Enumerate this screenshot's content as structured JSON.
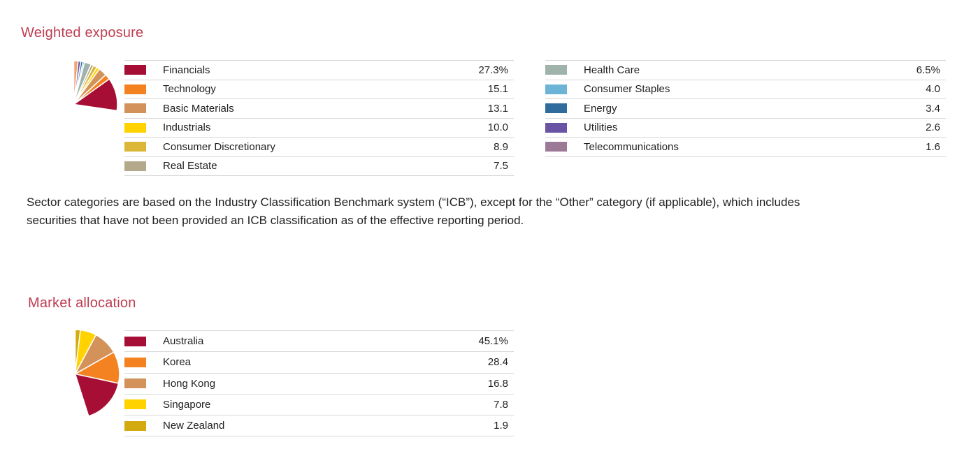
{
  "colors": {
    "heading": "#BE3D51",
    "text": "#1F1F1F",
    "divider": "#D8D8D8",
    "background": "#FFFFFF"
  },
  "sections": {
    "weighted_exposure": {
      "heading": "Weighted exposure",
      "legend_left": [
        {
          "label": "Financials",
          "value": "27.3%",
          "color": "#A60E36"
        },
        {
          "label": "Technology",
          "value": "15.1",
          "color": "#F58220"
        },
        {
          "label": "Basic Materials",
          "value": "13.1",
          "color": "#D2925A"
        },
        {
          "label": "Industrials",
          "value": "10.0",
          "color": "#FFD200"
        },
        {
          "label": "Consumer Discretionary",
          "value": "8.9",
          "color": "#DBB637"
        },
        {
          "label": "Real Estate",
          "value": "7.5",
          "color": "#B5A98C"
        }
      ],
      "legend_right": [
        {
          "label": "Health Care",
          "value": "6.5%",
          "color": "#9FB3AB"
        },
        {
          "label": "Consumer Staples",
          "value": "4.0",
          "color": "#6CB4D6"
        },
        {
          "label": "Energy",
          "value": "3.4",
          "color": "#2E6C9E"
        },
        {
          "label": "Utilities",
          "value": "2.6",
          "color": "#6953A4"
        },
        {
          "label": "Telecommunications",
          "value": "1.6",
          "color": "#9D7998"
        }
      ]
    },
    "note": {
      "lines": [
        "Sector categories are based on the Industry Classification Benchmark system (“ICB”), except for the “Other” category (if applicable), which includes",
        "securities that have not been provided an ICB classification as of the effective reporting period."
      ]
    },
    "market_allocation": {
      "heading": "Market allocation",
      "legend": [
        {
          "label": "Australia",
          "value": "45.1%",
          "color": "#A60E36"
        },
        {
          "label": "Korea",
          "value": "28.4",
          "color": "#F58220"
        },
        {
          "label": "Hong Kong",
          "value": "16.8",
          "color": "#D2925A"
        },
        {
          "label": "Singapore",
          "value": "7.8",
          "color": "#FFD200"
        },
        {
          "label": "New Zealand",
          "value": "1.9",
          "color": "#D3AB10"
        }
      ]
    }
  },
  "chart_data": [
    {
      "type": "pie",
      "title": "Weighted exposure",
      "categories": [
        "Financials",
        "Technology",
        "Basic Materials",
        "Industrials",
        "Consumer Discretionary",
        "Real Estate",
        "Health Care",
        "Consumer Staples",
        "Energy",
        "Utilities",
        "Telecommunications"
      ],
      "values": [
        27.3,
        15.1,
        13.1,
        10.0,
        8.9,
        7.5,
        6.5,
        4.0,
        3.4,
        2.6,
        1.6
      ],
      "slice_colors": [
        "#A60E36",
        "#F58220",
        "#D2925A",
        "#FFD200",
        "#DBB637",
        "#B5A98C",
        "#9FB3AB",
        "#6CB4D6",
        "#2E6C9E",
        "#6953A4",
        "#F2A36E"
      ],
      "unit": "%",
      "start_angle_deg": -90,
      "direction": "clockwise",
      "legend_position": "right-two-columns",
      "total": 100.0
    },
    {
      "type": "pie",
      "title": "Market allocation",
      "categories": [
        "Australia",
        "Korea",
        "Hong Kong",
        "Singapore",
        "New Zealand"
      ],
      "values": [
        45.1,
        28.4,
        16.8,
        7.8,
        1.9
      ],
      "slice_colors": [
        "#A60E36",
        "#F58220",
        "#D2925A",
        "#FFD200",
        "#D3AB10"
      ],
      "unit": "%",
      "start_angle_deg": -90,
      "direction": "clockwise",
      "legend_position": "right",
      "total": 100.0
    }
  ]
}
